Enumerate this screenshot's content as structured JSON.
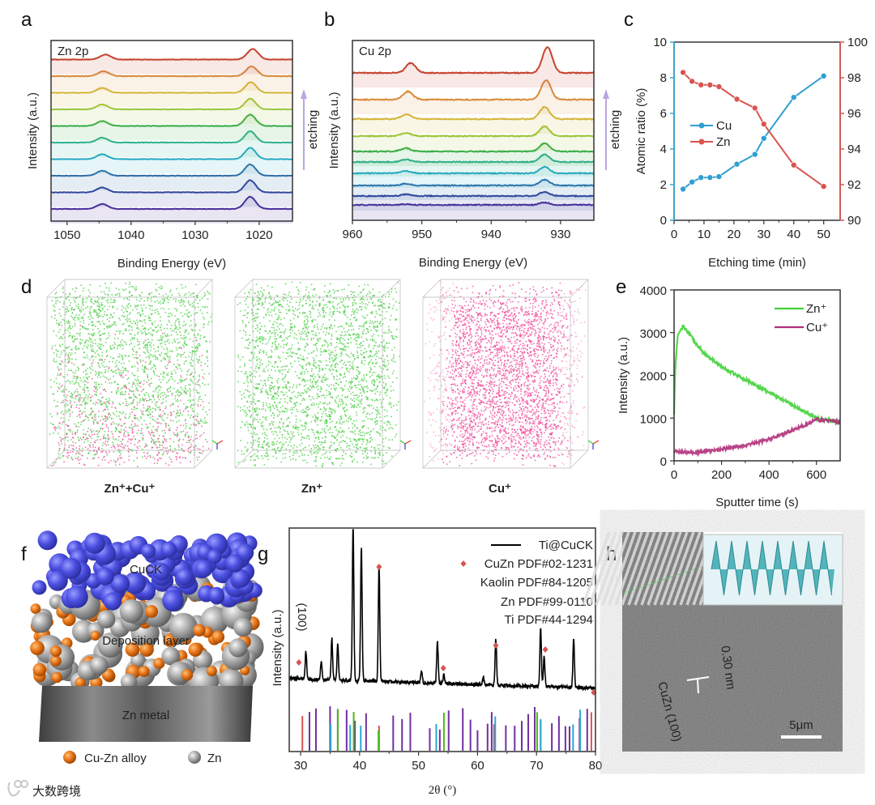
{
  "figure": {
    "panel_letters": [
      "a",
      "b",
      "c",
      "d",
      "e",
      "f",
      "g",
      "h"
    ],
    "watermark": "大数跨境"
  },
  "panel_d": {
    "labels": [
      "Zn⁺+Cu⁺",
      "Zn⁺",
      "Cu⁺"
    ],
    "colors": {
      "zn": "#4ccf45",
      "cu": "#f04f9c"
    }
  },
  "panel_f": {
    "layer_labels": [
      "CuCK",
      "Deposition layer",
      "Zn metal"
    ],
    "legend": [
      "Cu-Zn alloy",
      "Zn"
    ],
    "colors": {
      "cuck": "#4b4fe0",
      "alloy": "#e8761a",
      "zn": "#a9a9a9"
    }
  },
  "panel_h": {
    "plane_label": "CuZn (100)",
    "d_spacing": "0.30 nm",
    "scale_bar": "5μm"
  },
  "chart_data": [
    {
      "panel": "a",
      "type": "line",
      "title": "Zn 2p",
      "xlabel": "Binding Energy (eV)",
      "ylabel": "Intensity (a.u.)",
      "xlim": [
        1052.5,
        1014.8
      ],
      "xticks": [
        1050,
        1040,
        1030,
        1020
      ],
      "annotation": "etching",
      "peak_width": 1.2,
      "series": [
        {
          "color": "#4a2d9c",
          "offset": 0,
          "peaks": [
            [
              1044.5,
              0.6
            ],
            [
              1021.4,
              1.5
            ]
          ]
        },
        {
          "color": "#30469e",
          "offset": 2.05,
          "peaks": [
            [
              1044.5,
              0.6
            ],
            [
              1021.4,
              1.5
            ]
          ]
        },
        {
          "color": "#2d6ea8",
          "offset": 4.1,
          "peaks": [
            [
              1044.5,
              0.6
            ],
            [
              1021.4,
              1.4
            ]
          ]
        },
        {
          "color": "#26a9c4",
          "offset": 6.15,
          "peaks": [
            [
              1044.5,
              0.6
            ],
            [
              1021.4,
              1.4
            ]
          ]
        },
        {
          "color": "#2fb190",
          "offset": 8.2,
          "peaks": [
            [
              1044.5,
              0.6
            ],
            [
              1021.4,
              1.4
            ]
          ]
        },
        {
          "color": "#37ad45",
          "offset": 10.25,
          "peaks": [
            [
              1044.5,
              0.6
            ],
            [
              1021.4,
              1.4
            ]
          ]
        },
        {
          "color": "#9cc53a",
          "offset": 12.3,
          "peaks": [
            [
              1044.5,
              0.6
            ],
            [
              1021.4,
              1.3
            ]
          ]
        },
        {
          "color": "#d4b535",
          "offset": 14.35,
          "peaks": [
            [
              1044.5,
              0.6
            ],
            [
              1021.3,
              1.3
            ]
          ]
        },
        {
          "color": "#d98a3a",
          "offset": 16.4,
          "peaks": [
            [
              1044.3,
              0.6
            ],
            [
              1021.2,
              1.2
            ]
          ]
        },
        {
          "color": "#c6432f",
          "offset": 18.45,
          "peaks": [
            [
              1044.0,
              0.6
            ],
            [
              1021.0,
              1.3
            ]
          ]
        }
      ]
    },
    {
      "panel": "b",
      "type": "line",
      "title": "Cu 2p",
      "xlabel": "Binding Energy (eV)",
      "ylabel": "Intensity (a.u.)",
      "xlim": [
        960,
        925.2
      ],
      "xticks": [
        960,
        950,
        940,
        930
      ],
      "annotation": "etching",
      "peak_width": 1.0,
      "series": [
        {
          "color": "#4a2d9c",
          "offset": 0,
          "peaks": [
            [
              952.3,
              0.1
            ],
            [
              932.3,
              0.3
            ]
          ]
        },
        {
          "color": "#30469e",
          "offset": 1.1,
          "peaks": [
            [
              952.3,
              0.2
            ],
            [
              932.3,
              0.5
            ]
          ]
        },
        {
          "color": "#2d6ea8",
          "offset": 2.4,
          "peaks": [
            [
              952.3,
              0.2
            ],
            [
              932.3,
              0.7
            ]
          ]
        },
        {
          "color": "#26a9c4",
          "offset": 3.9,
          "peaks": [
            [
              952.3,
              0.3
            ],
            [
              932.3,
              0.8
            ]
          ]
        },
        {
          "color": "#2fb190",
          "offset": 5.3,
          "peaks": [
            [
              952.3,
              0.3
            ],
            [
              932.3,
              0.9
            ]
          ]
        },
        {
          "color": "#37ad45",
          "offset": 6.6,
          "peaks": [
            [
              952.3,
              0.4
            ],
            [
              932.3,
              1.0
            ]
          ]
        },
        {
          "color": "#9cc53a",
          "offset": 8.5,
          "peaks": [
            [
              952.3,
              0.4
            ],
            [
              932.3,
              1.2
            ]
          ]
        },
        {
          "color": "#d4b535",
          "offset": 10.6,
          "peaks": [
            [
              952.2,
              0.6
            ],
            [
              932.3,
              1.5
            ]
          ]
        },
        {
          "color": "#d98a3a",
          "offset": 13.0,
          "peaks": [
            [
              952.0,
              1.0
            ],
            [
              932.1,
              2.4
            ]
          ]
        },
        {
          "color": "#c6432f",
          "offset": 16.3,
          "peaks": [
            [
              951.6,
              1.2
            ],
            [
              931.9,
              3.2
            ]
          ]
        }
      ]
    },
    {
      "panel": "c",
      "type": "line",
      "xlabel": "Etching time (min)",
      "ylabel": "Atomic ratio (%)",
      "xlim": [
        0,
        55.5
      ],
      "xticks": [
        0,
        10,
        20,
        30,
        40,
        50
      ],
      "ylim_left": [
        0,
        10
      ],
      "yticks_left": [
        0,
        2,
        4,
        6,
        8,
        10
      ],
      "ylim_right": [
        90,
        100
      ],
      "yticks_right": [
        90,
        92,
        94,
        96,
        98,
        100
      ],
      "left_axis_color": "#3aa7cc",
      "right_axis_color": "#d05a5a",
      "x": [
        3,
        6,
        9,
        12,
        15,
        21,
        27,
        30,
        40,
        50
      ],
      "series": [
        {
          "name": "Cu",
          "axis": "left",
          "color": "#2f9fd2",
          "values": [
            1.75,
            2.15,
            2.4,
            2.4,
            2.45,
            3.15,
            3.7,
            4.6,
            6.9,
            8.1
          ]
        },
        {
          "name": "Zn",
          "axis": "right",
          "color": "#d9534f",
          "values": [
            98.3,
            97.8,
            97.6,
            97.6,
            97.5,
            96.8,
            96.3,
            95.4,
            93.1,
            91.9
          ]
        }
      ]
    },
    {
      "panel": "e",
      "type": "line",
      "xlabel": "Sputter time (s)",
      "ylabel": "Intensity (a.u.)",
      "xlim": [
        0,
        700
      ],
      "ylim": [
        0,
        4000
      ],
      "xticks": [
        0,
        200,
        400,
        600
      ],
      "yticks": [
        0,
        1000,
        2000,
        3000,
        4000
      ],
      "legend_position": "top-right",
      "series": [
        {
          "name": "Zn⁺",
          "color": "#43d13a",
          "x": [
            0,
            5,
            15,
            30,
            40,
            60,
            80,
            120,
            200,
            300,
            400,
            500,
            600,
            650,
            700
          ],
          "y": [
            1100,
            2200,
            2900,
            3100,
            3150,
            3000,
            2850,
            2550,
            2200,
            1900,
            1600,
            1300,
            1000,
            950,
            880
          ]
        },
        {
          "name": "Cu⁺",
          "color": "#b0307a",
          "x": [
            0,
            50,
            100,
            200,
            300,
            400,
            500,
            550,
            600,
            650,
            700
          ],
          "y": [
            230,
            200,
            200,
            270,
            360,
            500,
            720,
            830,
            960,
            940,
            900
          ]
        }
      ]
    },
    {
      "panel": "g",
      "type": "line",
      "xlabel": "2θ (°)",
      "ylabel": "Intensity (a.u.)",
      "xlim": [
        28.07,
        80
      ],
      "xticks": [
        30,
        40,
        50,
        60,
        70,
        80
      ],
      "peak_annotation": {
        "text": "(100)",
        "x": 31
      },
      "series": [
        {
          "name": "Ti@CuCK",
          "color": "#000000",
          "peaks": [
            [
              30.9,
              18
            ],
            [
              33.5,
              11
            ],
            [
              35.3,
              27
            ],
            [
              36.3,
              24
            ],
            [
              38.9,
              100
            ],
            [
              40.3,
              87
            ],
            [
              43.3,
              75
            ],
            [
              50.5,
              8
            ],
            [
              53.2,
              27
            ],
            [
              54.3,
              6
            ],
            [
              61.0,
              5
            ],
            [
              63.1,
              30
            ],
            [
              70.7,
              38
            ],
            [
              71.3,
              20
            ],
            [
              76.3,
              32
            ]
          ]
        }
      ],
      "cuzn_markers": [
        29.7,
        43.3,
        54.2,
        63.1,
        71.5,
        79.7
      ],
      "references": [
        {
          "name": "CuZn PDF#02-1231",
          "color": "#d9534f",
          "positions": [
            30.3,
            43.3,
            62.8,
            79.3
          ]
        },
        {
          "name": "Kaolin PDF#84-1205",
          "color": "#7030a0",
          "positions": [
            31.5,
            32.6,
            35.0,
            36.3,
            37.8,
            39.2,
            41.1,
            45.7,
            47.2,
            48.6,
            51.9,
            53.6,
            55.1,
            57.5,
            58.8,
            60.0,
            61.7,
            62.4,
            64.8,
            66.3,
            67.5,
            68.6,
            69.7,
            72.6,
            73.8,
            74.9,
            75.6,
            77.3,
            78.6
          ]
        },
        {
          "name": "Zn PDF#99-0110",
          "color": "#4cbb17",
          "positions": [
            36.3,
            39.0,
            43.2,
            54.3,
            70.1,
            70.7
          ]
        },
        {
          "name": "Ti PDF#44-1294",
          "color": "#29a8d8",
          "positions": [
            35.1,
            38.4,
            40.2,
            53.0,
            63.0,
            70.7,
            76.2,
            77.4
          ]
        }
      ]
    }
  ]
}
